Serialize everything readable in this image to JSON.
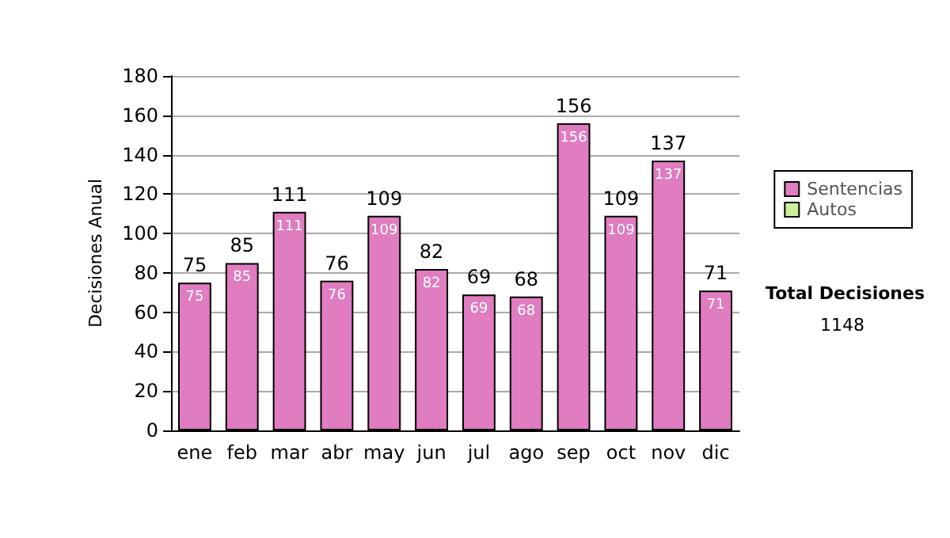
{
  "chart_data": {
    "type": "bar",
    "stacked": true,
    "ylabel": "Decisiones Anual",
    "categories": [
      "ene",
      "feb",
      "mar",
      "abr",
      "may",
      "jun",
      "jul",
      "ago",
      "sep",
      "oct",
      "nov",
      "dic"
    ],
    "series": [
      {
        "name": "Sentencias",
        "color": "#e07cc0",
        "values": [
          75,
          85,
          111,
          76,
          109,
          82,
          69,
          68,
          156,
          109,
          137,
          71
        ],
        "value_labels": [
          "75",
          "85",
          "111",
          "76",
          "109",
          "82",
          "69",
          "68",
          "156",
          "109",
          "137",
          "71"
        ]
      },
      {
        "name": "Autos",
        "color": "#ccee99",
        "values": [
          0,
          0,
          0,
          0,
          0,
          0,
          0,
          0,
          0,
          0,
          0,
          0
        ]
      }
    ],
    "totals": [
      "75",
      "85",
      "111",
      "76",
      "109",
      "82",
      "69",
      "68",
      "156",
      "109",
      "137",
      "71"
    ],
    "ylim": [
      0,
      180
    ],
    "yticks": [
      0,
      20,
      40,
      60,
      80,
      100,
      120,
      140,
      160,
      180
    ],
    "grid": "y",
    "legend": "right",
    "annotations": [
      "Total Decisiones",
      "1148"
    ]
  }
}
